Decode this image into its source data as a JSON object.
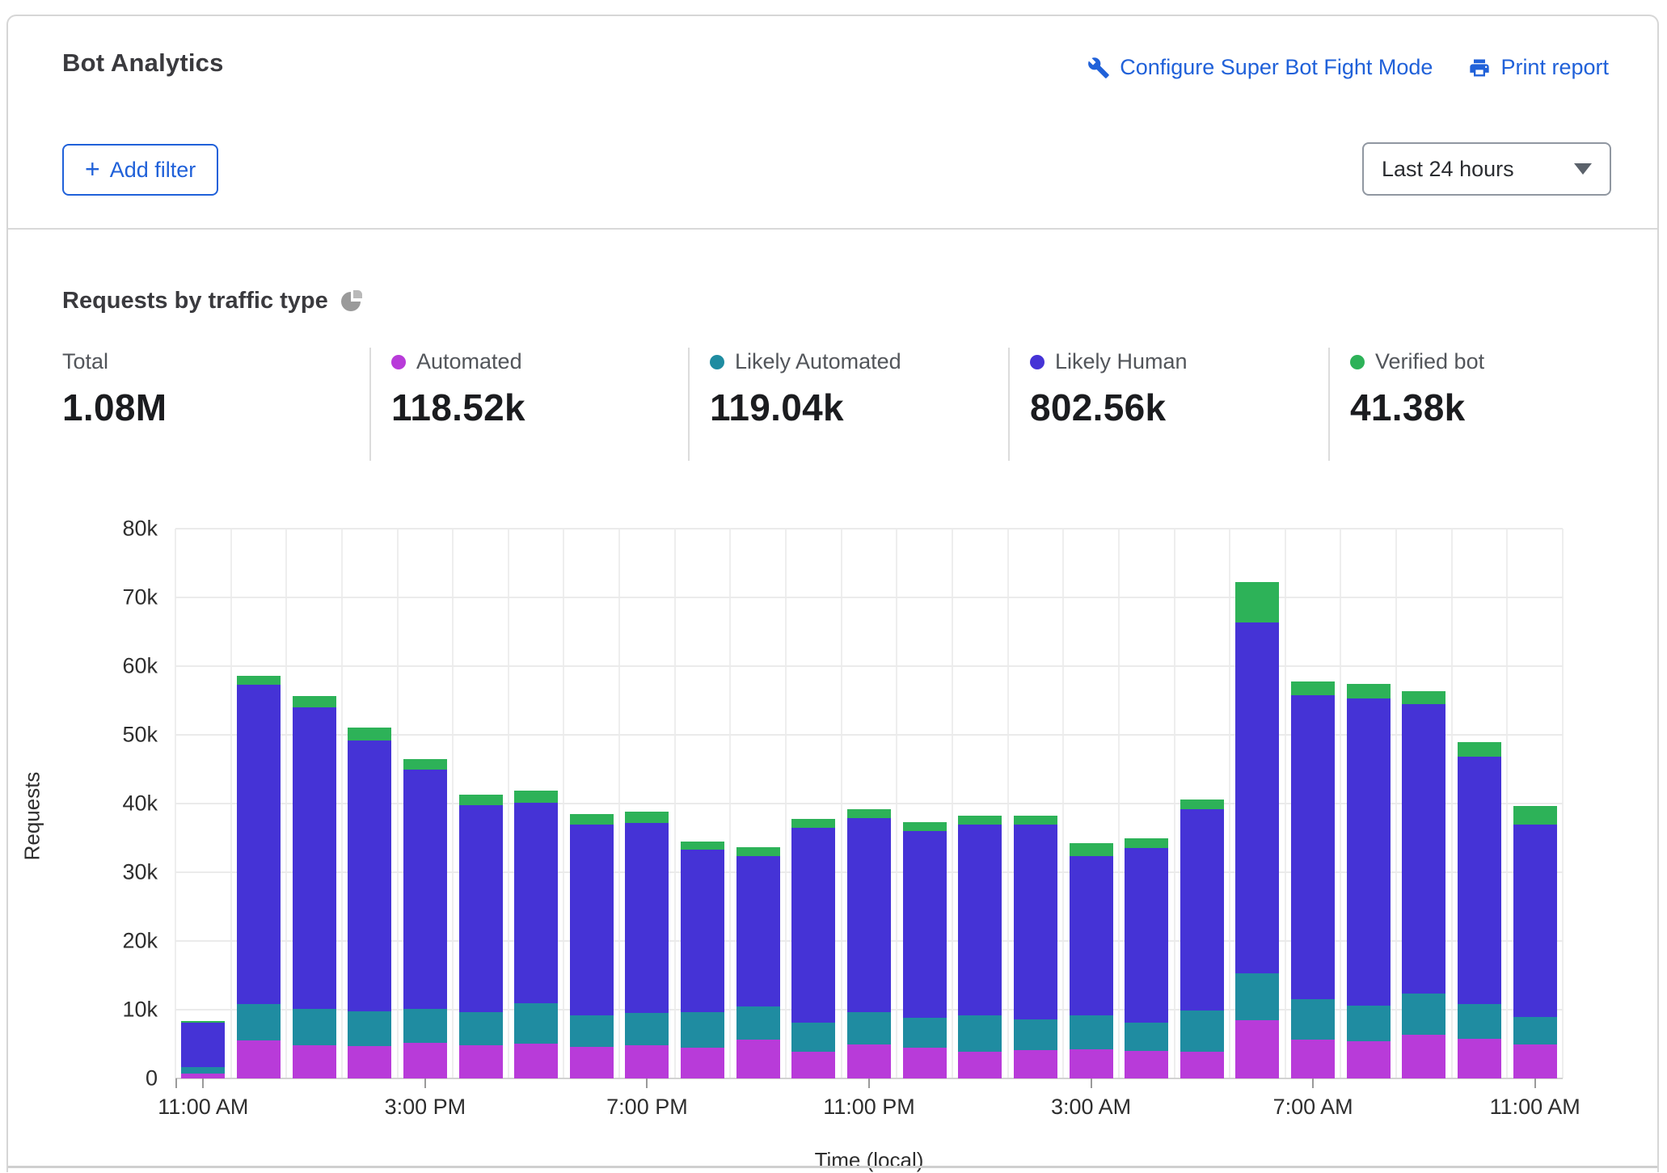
{
  "header": {
    "title": "Bot Analytics",
    "configure_label": "Configure Super Bot Fight Mode",
    "print_label": "Print report"
  },
  "toolbar": {
    "add_filter_label": "Add filter",
    "plus_icon": "+",
    "time_range_value": "Last 24 hours"
  },
  "section": {
    "title": "Requests by traffic type",
    "pie_icon": "pie-chart-icon"
  },
  "colors": {
    "link_blue": "#2061d9",
    "automated": "#b83bd9",
    "likely_automated": "#1f8ca1",
    "likely_human": "#4533d6",
    "verified_bot": "#2db258"
  },
  "stats": {
    "items": [
      {
        "label": "Total",
        "value": "1.08M",
        "dot": null
      },
      {
        "label": "Automated",
        "value": "118.52k",
        "dot": "#b83bd9"
      },
      {
        "label": "Likely Automated",
        "value": "119.04k",
        "dot": "#1f8ca1"
      },
      {
        "label": "Likely Human",
        "value": "802.56k",
        "dot": "#4533d6"
      },
      {
        "label": "Verified bot",
        "value": "41.38k",
        "dot": "#2db258"
      }
    ]
  },
  "chart_data": {
    "type": "bar",
    "stacked": true,
    "title": "Requests by traffic type",
    "xlabel": "Time (local)",
    "ylabel": "Requests",
    "ylim": [
      0,
      80000
    ],
    "grid": true,
    "yticks": [
      "0",
      "10k",
      "20k",
      "30k",
      "40k",
      "50k",
      "60k",
      "70k",
      "80k"
    ],
    "x_hours": [
      "11:00 AM",
      "12:00 PM",
      "1:00 PM",
      "2:00 PM",
      "3:00 PM",
      "4:00 PM",
      "5:00 PM",
      "6:00 PM",
      "7:00 PM",
      "8:00 PM",
      "9:00 PM",
      "10:00 PM",
      "11:00 PM",
      "12:00 AM",
      "1:00 AM",
      "2:00 AM",
      "3:00 AM",
      "4:00 AM",
      "5:00 AM",
      "6:00 AM",
      "7:00 AM",
      "8:00 AM",
      "9:00 AM",
      "10:00 AM",
      "11:00 AM"
    ],
    "x_tick_labels": [
      {
        "index": 0,
        "label": "11:00 AM"
      },
      {
        "index": 4,
        "label": "3:00 PM"
      },
      {
        "index": 8,
        "label": "7:00 PM"
      },
      {
        "index": 12,
        "label": "11:00 PM"
      },
      {
        "index": 16,
        "label": "3:00 AM"
      },
      {
        "index": 20,
        "label": "7:00 AM"
      },
      {
        "index": 24,
        "label": "11:00 AM"
      }
    ],
    "series": [
      {
        "name": "Automated",
        "color": "#b83bd9",
        "values": [
          700,
          5500,
          4800,
          4700,
          5200,
          4800,
          5100,
          4600,
          4800,
          4500,
          5600,
          3900,
          5000,
          4500,
          3900,
          4100,
          4200,
          4000,
          3900,
          8500,
          5600,
          5400,
          6400,
          5800,
          5000
        ]
      },
      {
        "name": "Likely Automated",
        "color": "#1f8ca1",
        "values": [
          1000,
          5300,
          5300,
          5100,
          4900,
          4800,
          5800,
          4600,
          4700,
          5200,
          4900,
          4200,
          4700,
          4300,
          5300,
          4500,
          5000,
          4100,
          6000,
          6800,
          5900,
          5200,
          5900,
          5000,
          4000
        ]
      },
      {
        "name": "Likely Human",
        "color": "#4533d6",
        "values": [
          6400,
          46500,
          43900,
          39400,
          34800,
          30200,
          29200,
          27700,
          27700,
          23600,
          21900,
          28400,
          28200,
          27200,
          27700,
          28300,
          23100,
          25400,
          29300,
          51000,
          44300,
          44700,
          42200,
          36000,
          27900
        ]
      },
      {
        "name": "Verified bot",
        "color": "#2db258",
        "values": [
          200,
          1300,
          1700,
          1900,
          1600,
          1500,
          1800,
          1600,
          1600,
          1200,
          1200,
          1300,
          1300,
          1300,
          1300,
          1300,
          1900,
          1500,
          1400,
          5900,
          2000,
          2100,
          1900,
          2100,
          2700
        ]
      }
    ],
    "legend_position": "top"
  }
}
